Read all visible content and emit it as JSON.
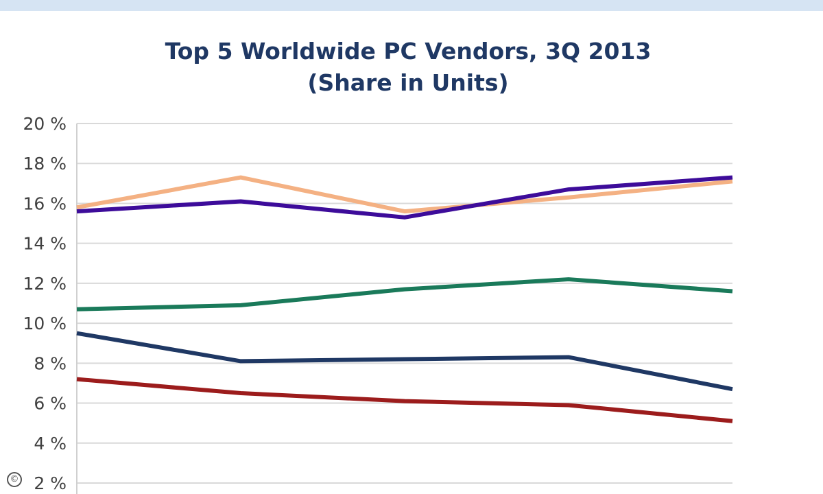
{
  "header": {
    "band_color": "#d6e4f3"
  },
  "chart_data": {
    "type": "line",
    "title": "Top 5 Worldwide PC Vendors, 3Q 2013",
    "subtitle": "(Share in Units)",
    "xlabel": "",
    "ylabel": "",
    "y_tick_labels": [
      "20 %",
      "18 %",
      "16 %",
      "14 %",
      "12 %",
      "10 %",
      "8 %",
      "6 %",
      "4 %",
      "2 %"
    ],
    "y_ticks": [
      20,
      18,
      16,
      14,
      12,
      10,
      8,
      6,
      4,
      2
    ],
    "ylim": [
      2,
      20
    ],
    "x": [
      1,
      2,
      3,
      4,
      5
    ],
    "grid": true,
    "series": [
      {
        "color": "#f4b183",
        "values": [
          15.8,
          17.3,
          15.6,
          16.3,
          17.1
        ]
      },
      {
        "color": "#3d0c9a",
        "values": [
          15.6,
          16.1,
          15.3,
          16.7,
          17.3
        ]
      },
      {
        "color": "#1a7a5a",
        "values": [
          10.7,
          10.9,
          11.7,
          12.2,
          11.6
        ]
      },
      {
        "color": "#1f3864",
        "values": [
          9.5,
          8.1,
          8.2,
          8.3,
          6.7
        ]
      },
      {
        "color": "#9c1c1c",
        "values": [
          7.2,
          6.5,
          6.1,
          5.9,
          5.1
        ]
      }
    ]
  },
  "watermark_symbol": "©"
}
